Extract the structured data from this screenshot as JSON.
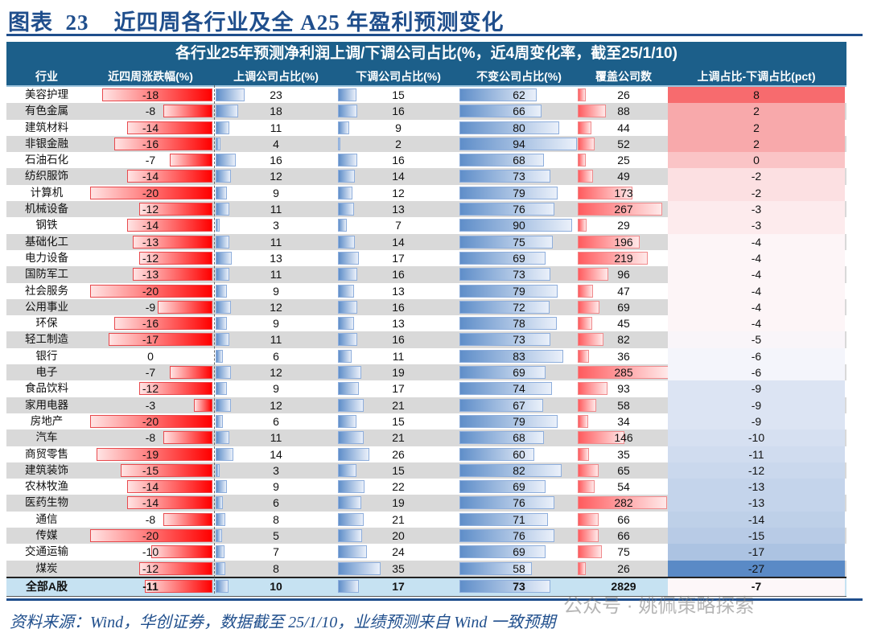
{
  "title": "图表  23    近四周各行业及全 A25 年盈利预测变化",
  "chart_data": {
    "type": "table",
    "caption": "各行业25年预测净利润上调/下调公司占比(%，近4周变化率，截至25/1/10)",
    "columns": [
      "行业",
      "近四周涨跌幅(%)",
      "上调公司占比(%)",
      "下调公司占比(%)",
      "不变公司占比(%)",
      "覆盖公司数",
      "上调占比-下调占比(pct)"
    ],
    "rows": [
      [
        "美容护理",
        -18,
        23,
        15,
        62,
        26,
        8
      ],
      [
        "有色金属",
        -8,
        18,
        16,
        66,
        88,
        2
      ],
      [
        "建筑材料",
        -14,
        11,
        9,
        80,
        44,
        2
      ],
      [
        "非银金融",
        -16,
        4,
        2,
        94,
        52,
        2
      ],
      [
        "石油石化",
        -7,
        16,
        16,
        68,
        25,
        0
      ],
      [
        "纺织服饰",
        -14,
        12,
        14,
        73,
        49,
        -2
      ],
      [
        "计算机",
        -20,
        9,
        12,
        79,
        173,
        -2
      ],
      [
        "机械设备",
        -12,
        11,
        13,
        76,
        267,
        -3
      ],
      [
        "钢铁",
        -14,
        3,
        7,
        90,
        29,
        -3
      ],
      [
        "基础化工",
        -13,
        11,
        14,
        75,
        196,
        -4
      ],
      [
        "电力设备",
        -12,
        13,
        17,
        69,
        219,
        -4
      ],
      [
        "国防军工",
        -13,
        11,
        16,
        73,
        96,
        -4
      ],
      [
        "社会服务",
        -20,
        9,
        13,
        79,
        47,
        -4
      ],
      [
        "公用事业",
        -9,
        12,
        16,
        72,
        69,
        -4
      ],
      [
        "环保",
        -16,
        9,
        13,
        78,
        45,
        -4
      ],
      [
        "轻工制造",
        -17,
        11,
        16,
        73,
        82,
        -5
      ],
      [
        "银行",
        0,
        6,
        11,
        83,
        36,
        -6
      ],
      [
        "电子",
        -7,
        12,
        19,
        69,
        285,
        -6
      ],
      [
        "食品饮料",
        -12,
        9,
        17,
        74,
        93,
        -9
      ],
      [
        "家用电器",
        -3,
        12,
        21,
        67,
        58,
        -9
      ],
      [
        "房地产",
        -20,
        6,
        15,
        79,
        34,
        -9
      ],
      [
        "汽车",
        -8,
        11,
        21,
        68,
        146,
        -10
      ],
      [
        "商贸零售",
        -19,
        14,
        26,
        60,
        35,
        -11
      ],
      [
        "建筑装饰",
        -15,
        3,
        15,
        82,
        65,
        -12
      ],
      [
        "农林牧渔",
        -14,
        9,
        22,
        69,
        54,
        -13
      ],
      [
        "医药生物",
        -14,
        6,
        19,
        76,
        282,
        -13
      ],
      [
        "通信",
        -8,
        8,
        21,
        71,
        66,
        -14
      ],
      [
        "传媒",
        -20,
        5,
        20,
        76,
        66,
        -15
      ],
      [
        "交通运输",
        -10,
        7,
        24,
        69,
        75,
        -17
      ],
      [
        "煤炭",
        -12,
        8,
        35,
        58,
        26,
        -27
      ]
    ],
    "total": [
      "全部A股",
      -11,
      10,
      17,
      73,
      2829,
      -7
    ],
    "colors": {
      "header": "#1c5f8a",
      "bar_red": "#ff0000",
      "bar_blue": "#5f8ec9",
      "heat_positive": "#f76b6e",
      "heat_negative": "#5a8ac6"
    }
  },
  "footnote": "资料来源：Wind，华创证券，数据截至 25/1/10，业绩预测来自 Wind 一致预期",
  "watermark": "公众号 · 姚佩策略探索"
}
